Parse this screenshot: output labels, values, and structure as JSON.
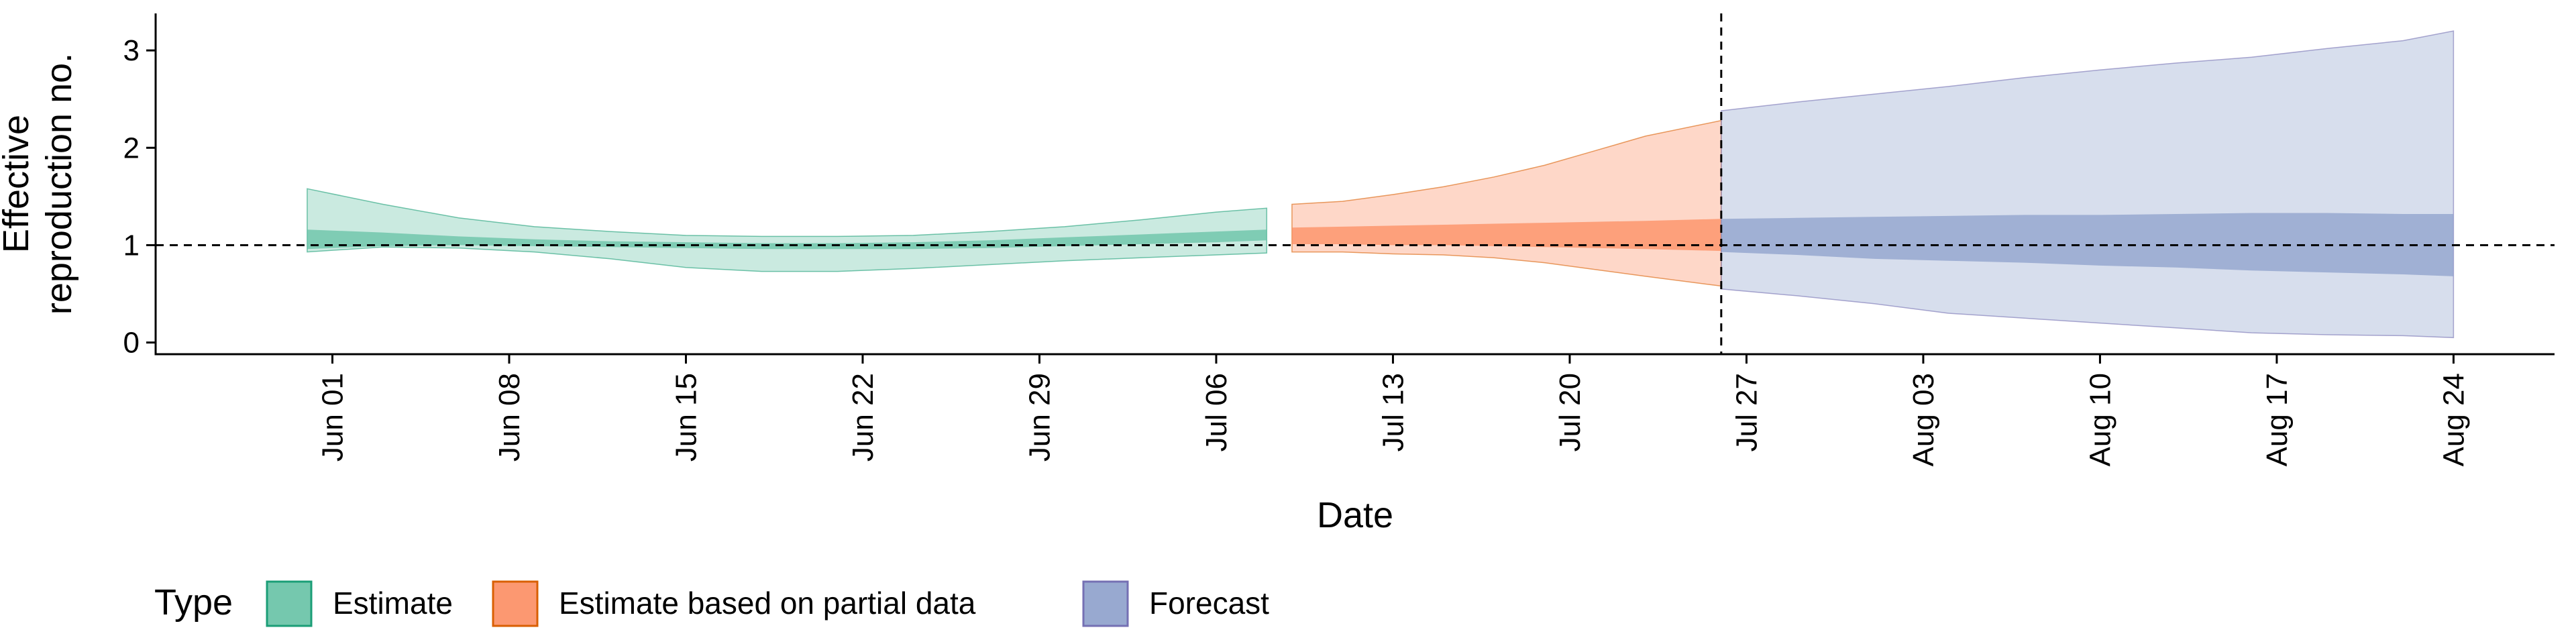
{
  "chart_data": {
    "type": "area",
    "xlabel": "Date",
    "ylabel_lines": [
      "Effective",
      "reproduction no."
    ],
    "ylim": [
      -0.12,
      3.38
    ],
    "yticks": [
      0,
      1,
      2,
      3
    ],
    "xlim": [
      "2020-05-25",
      "2020-08-28"
    ],
    "xticks": [
      {
        "date": "2020-06-01",
        "label": "Jun 01"
      },
      {
        "date": "2020-06-08",
        "label": "Jun 08"
      },
      {
        "date": "2020-06-15",
        "label": "Jun 15"
      },
      {
        "date": "2020-06-22",
        "label": "Jun 22"
      },
      {
        "date": "2020-06-29",
        "label": "Jun 29"
      },
      {
        "date": "2020-07-06",
        "label": "Jul 06"
      },
      {
        "date": "2020-07-13",
        "label": "Jul 13"
      },
      {
        "date": "2020-07-20",
        "label": "Jul 20"
      },
      {
        "date": "2020-07-27",
        "label": "Jul 27"
      },
      {
        "date": "2020-08-03",
        "label": "Aug 03"
      },
      {
        "date": "2020-08-10",
        "label": "Aug 10"
      },
      {
        "date": "2020-08-17",
        "label": "Aug 17"
      },
      {
        "date": "2020-08-24",
        "label": "Aug 24"
      }
    ],
    "hline": 1,
    "vline": "2020-07-26",
    "legend": {
      "title": "Type",
      "placement": "bottom",
      "entries": [
        "Estimate",
        "Estimate based on partial data",
        "Forecast"
      ]
    },
    "series": [
      {
        "name": "Estimate",
        "fill_color": "#66C2A5",
        "outline_color": "#1B9E77",
        "dates": [
          "2020-05-31",
          "2020-06-03",
          "2020-06-06",
          "2020-06-09",
          "2020-06-12",
          "2020-06-15",
          "2020-06-18",
          "2020-06-21",
          "2020-06-24",
          "2020-06-27",
          "2020-06-30",
          "2020-07-03",
          "2020-07-06",
          "2020-07-08"
        ],
        "lower90": [
          0.93,
          0.98,
          0.97,
          0.93,
          0.86,
          0.77,
          0.73,
          0.73,
          0.76,
          0.8,
          0.84,
          0.87,
          0.9,
          0.92
        ],
        "upper90": [
          1.58,
          1.42,
          1.28,
          1.19,
          1.14,
          1.1,
          1.09,
          1.09,
          1.1,
          1.14,
          1.19,
          1.26,
          1.34,
          1.38
        ],
        "lower50": [
          0.96,
          0.99,
          1.0,
          0.99,
          0.98,
          0.97,
          0.96,
          0.96,
          0.96,
          0.97,
          0.99,
          1.01,
          1.03,
          1.05
        ],
        "upper50": [
          1.16,
          1.13,
          1.09,
          1.06,
          1.04,
          1.03,
          1.02,
          1.02,
          1.03,
          1.05,
          1.08,
          1.11,
          1.14,
          1.16
        ]
      },
      {
        "name": "Estimate based on partial data",
        "fill_color": "#FC8D62",
        "outline_color": "#D95F02",
        "dates": [
          "2020-07-09",
          "2020-07-11",
          "2020-07-13",
          "2020-07-15",
          "2020-07-17",
          "2020-07-19",
          "2020-07-21",
          "2020-07-23",
          "2020-07-26"
        ],
        "lower90": [
          0.93,
          0.93,
          0.91,
          0.9,
          0.87,
          0.82,
          0.75,
          0.68,
          0.58
        ],
        "upper90": [
          1.42,
          1.45,
          1.52,
          1.6,
          1.7,
          1.82,
          1.97,
          2.12,
          2.28
        ],
        "lower50": [
          1.01,
          1.01,
          1.0,
          1.0,
          0.99,
          0.98,
          0.97,
          0.96,
          0.94
        ],
        "upper50": [
          1.18,
          1.19,
          1.2,
          1.21,
          1.22,
          1.23,
          1.24,
          1.25,
          1.27
        ]
      },
      {
        "name": "Forecast",
        "fill_color": "#8DA0CB",
        "outline_color": "#7570B3",
        "dates": [
          "2020-07-26",
          "2020-07-29",
          "2020-08-01",
          "2020-08-04",
          "2020-08-07",
          "2020-08-10",
          "2020-08-13",
          "2020-08-16",
          "2020-08-19",
          "2020-08-22",
          "2020-08-24"
        ],
        "lower90": [
          0.55,
          0.48,
          0.4,
          0.3,
          0.25,
          0.2,
          0.15,
          0.1,
          0.08,
          0.07,
          0.05
        ],
        "upper90": [
          2.38,
          2.47,
          2.55,
          2.63,
          2.72,
          2.8,
          2.87,
          2.93,
          3.02,
          3.1,
          3.2
        ],
        "lower50": [
          0.93,
          0.9,
          0.86,
          0.84,
          0.82,
          0.79,
          0.77,
          0.74,
          0.72,
          0.7,
          0.68
        ],
        "upper50": [
          1.27,
          1.28,
          1.29,
          1.3,
          1.31,
          1.31,
          1.32,
          1.33,
          1.33,
          1.32,
          1.32
        ]
      }
    ]
  }
}
